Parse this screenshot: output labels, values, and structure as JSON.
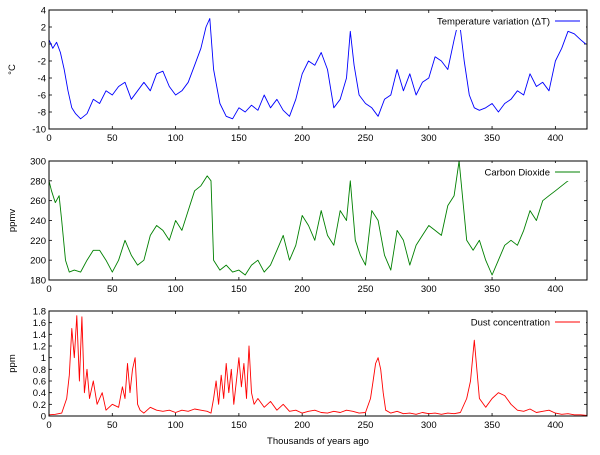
{
  "xlabel": "Thousands of years ago",
  "chart_data": [
    {
      "type": "line",
      "ylabel": "°C",
      "xlim": [
        0,
        425
      ],
      "ylim": [
        -10,
        4
      ],
      "xticks": [
        0,
        50,
        100,
        150,
        200,
        250,
        300,
        350,
        400
      ],
      "yticks": [
        -10,
        -8,
        -6,
        -4,
        -2,
        0,
        2,
        4
      ],
      "legend_position": "top-right",
      "series": [
        {
          "name": "Temperature variation (ΔT)",
          "color": "#0000ff",
          "x": [
            0,
            3,
            6,
            9,
            12,
            15,
            18,
            21,
            25,
            30,
            35,
            40,
            45,
            50,
            55,
            60,
            65,
            70,
            75,
            80,
            85,
            90,
            95,
            100,
            105,
            110,
            115,
            120,
            124,
            127,
            130,
            135,
            140,
            145,
            150,
            155,
            160,
            165,
            170,
            175,
            180,
            185,
            190,
            195,
            200,
            205,
            210,
            215,
            220,
            225,
            230,
            235,
            238,
            241,
            245,
            250,
            255,
            260,
            265,
            270,
            275,
            280,
            285,
            290,
            295,
            300,
            305,
            310,
            315,
            320,
            324,
            328,
            332,
            336,
            340,
            345,
            350,
            355,
            360,
            365,
            370,
            375,
            380,
            385,
            390,
            395,
            400,
            405,
            410,
            415,
            420,
            424
          ],
          "y": [
            0.5,
            -0.5,
            0.2,
            -1.0,
            -3.0,
            -5.5,
            -7.5,
            -8.2,
            -8.8,
            -8.2,
            -6.5,
            -7.0,
            -5.5,
            -6.0,
            -5.0,
            -4.5,
            -6.5,
            -5.5,
            -4.5,
            -5.5,
            -3.5,
            -3.2,
            -5.0,
            -6.0,
            -5.5,
            -4.5,
            -2.5,
            -0.5,
            2.0,
            3.0,
            -3.0,
            -7.0,
            -8.5,
            -8.8,
            -7.5,
            -8.0,
            -7.2,
            -7.8,
            -6.0,
            -7.5,
            -6.5,
            -7.8,
            -8.5,
            -6.5,
            -3.5,
            -2.0,
            -2.5,
            -1.0,
            -3.0,
            -7.5,
            -6.5,
            -4.0,
            1.5,
            -2.5,
            -6.0,
            -7.0,
            -7.5,
            -8.5,
            -6.5,
            -6.0,
            -3.0,
            -5.5,
            -3.5,
            -6.0,
            -4.5,
            -4.0,
            -1.5,
            -2.0,
            -3.0,
            0.5,
            3.0,
            -2.0,
            -6.0,
            -7.5,
            -7.8,
            -7.5,
            -7.0,
            -8.0,
            -7.0,
            -6.5,
            -5.5,
            -6.0,
            -3.5,
            -5.0,
            -4.5,
            -5.5,
            -2.0,
            -0.5,
            1.5,
            1.2,
            0.5,
            0.0
          ]
        }
      ]
    },
    {
      "type": "line",
      "ylabel": "ppmv",
      "xlim": [
        0,
        425
      ],
      "ylim": [
        180,
        300
      ],
      "xticks": [
        0,
        50,
        100,
        150,
        200,
        250,
        300,
        350,
        400
      ],
      "yticks": [
        180,
        200,
        220,
        240,
        260,
        280,
        300
      ],
      "legend_position": "top-right",
      "series": [
        {
          "name": "Carbon Dioxide",
          "color": "#008000",
          "x": [
            0,
            2,
            5,
            8,
            10,
            13,
            16,
            20,
            25,
            30,
            35,
            40,
            45,
            50,
            55,
            60,
            65,
            70,
            75,
            80,
            85,
            90,
            95,
            100,
            105,
            110,
            115,
            120,
            125,
            128,
            130,
            135,
            140,
            145,
            150,
            155,
            160,
            165,
            170,
            175,
            180,
            185,
            190,
            195,
            200,
            205,
            210,
            215,
            220,
            225,
            230,
            235,
            238,
            242,
            246,
            250,
            255,
            260,
            265,
            270,
            275,
            280,
            285,
            290,
            295,
            300,
            305,
            310,
            315,
            320,
            324,
            327,
            330,
            335,
            340,
            345,
            350,
            355,
            360,
            365,
            370,
            375,
            380,
            385,
            390,
            395,
            400,
            405,
            410,
            415,
            420
          ],
          "y": [
            280,
            270,
            258,
            265,
            240,
            200,
            188,
            190,
            188,
            200,
            210,
            210,
            200,
            188,
            200,
            220,
            205,
            195,
            200,
            225,
            235,
            230,
            220,
            240,
            230,
            250,
            270,
            275,
            285,
            280,
            200,
            190,
            195,
            188,
            190,
            185,
            195,
            200,
            188,
            195,
            210,
            225,
            200,
            215,
            245,
            235,
            220,
            250,
            225,
            215,
            250,
            240,
            280,
            220,
            205,
            195,
            250,
            240,
            205,
            190,
            230,
            220,
            195,
            215,
            225,
            235,
            230,
            225,
            255,
            265,
            300,
            260,
            220,
            210,
            220,
            200,
            185,
            200,
            215,
            220,
            215,
            230,
            250,
            240,
            260,
            265,
            270,
            275,
            280,
            282,
            285
          ]
        }
      ]
    },
    {
      "type": "line",
      "ylabel": "ppm",
      "xlim": [
        0,
        425
      ],
      "ylim": [
        0,
        1.8
      ],
      "xticks": [
        0,
        50,
        100,
        150,
        200,
        250,
        300,
        350,
        400
      ],
      "yticks": [
        0,
        0.2,
        0.4,
        0.6,
        0.8,
        1,
        1.2,
        1.4,
        1.6,
        1.8
      ],
      "legend_position": "top-right",
      "series": [
        {
          "name": "Dust concentration",
          "color": "#ff0000",
          "x": [
            0,
            5,
            10,
            14,
            16,
            18,
            20,
            22,
            24,
            26,
            28,
            30,
            32,
            35,
            38,
            42,
            45,
            50,
            55,
            58,
            60,
            62,
            64,
            66,
            68,
            70,
            72,
            75,
            80,
            85,
            90,
            95,
            100,
            105,
            110,
            115,
            120,
            125,
            128,
            130,
            132,
            134,
            136,
            138,
            140,
            142,
            144,
            146,
            148,
            150,
            152,
            154,
            156,
            158,
            160,
            162,
            165,
            170,
            175,
            180,
            185,
            190,
            195,
            200,
            205,
            210,
            215,
            220,
            225,
            230,
            235,
            240,
            245,
            250,
            254,
            256,
            258,
            260,
            262,
            264,
            266,
            270,
            275,
            280,
            285,
            290,
            295,
            300,
            305,
            310,
            315,
            320,
            325,
            330,
            333,
            336,
            340,
            345,
            350,
            355,
            360,
            365,
            370,
            375,
            380,
            385,
            390,
            395,
            400,
            405,
            410,
            415,
            420,
            425
          ],
          "y": [
            0.02,
            0.03,
            0.05,
            0.3,
            0.7,
            1.5,
            1.0,
            1.72,
            0.6,
            1.7,
            0.4,
            0.8,
            0.3,
            0.6,
            0.2,
            0.4,
            0.1,
            0.2,
            0.15,
            0.5,
            0.3,
            0.9,
            0.4,
            0.8,
            1.0,
            0.2,
            0.1,
            0.05,
            0.15,
            0.1,
            0.08,
            0.1,
            0.06,
            0.1,
            0.08,
            0.12,
            0.1,
            0.08,
            0.05,
            0.3,
            0.6,
            0.2,
            0.7,
            0.3,
            0.9,
            0.4,
            0.8,
            0.2,
            0.6,
            1.0,
            0.5,
            0.9,
            0.3,
            1.2,
            0.4,
            0.2,
            0.3,
            0.15,
            0.25,
            0.1,
            0.2,
            0.08,
            0.1,
            0.05,
            0.08,
            0.1,
            0.06,
            0.05,
            0.08,
            0.06,
            0.1,
            0.08,
            0.05,
            0.06,
            0.3,
            0.6,
            0.9,
            1.0,
            0.8,
            0.4,
            0.1,
            0.05,
            0.08,
            0.04,
            0.05,
            0.03,
            0.06,
            0.04,
            0.05,
            0.03,
            0.05,
            0.04,
            0.06,
            0.3,
            0.6,
            1.3,
            0.3,
            0.15,
            0.3,
            0.4,
            0.35,
            0.2,
            0.1,
            0.08,
            0.12,
            0.06,
            0.08,
            0.1,
            0.05,
            0.03,
            0.04,
            0.02,
            0.02,
            0.01
          ]
        }
      ]
    }
  ]
}
